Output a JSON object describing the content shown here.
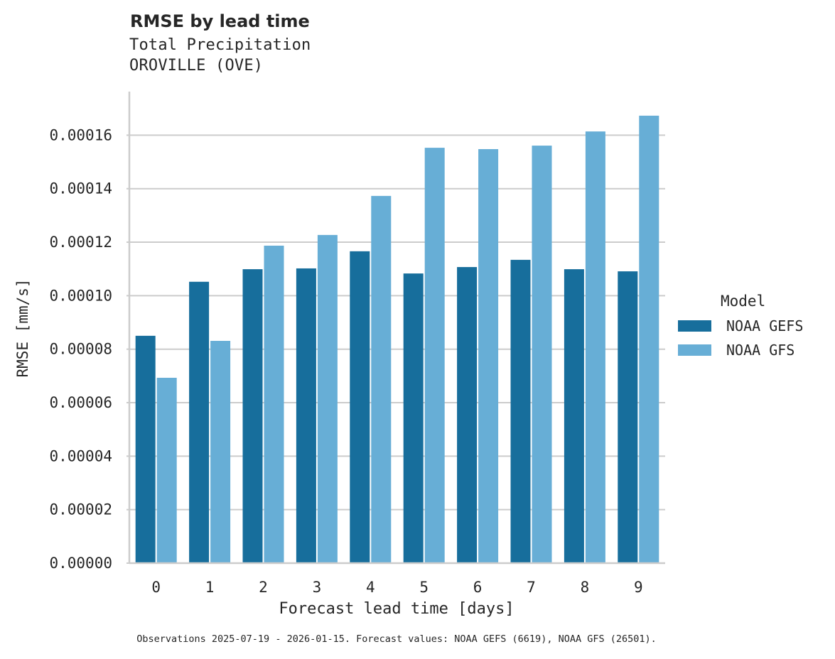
{
  "header": {
    "title": "RMSE by lead time",
    "subtitle_line1": "Total Precipitation",
    "subtitle_line2": "OROVILLE (OVE)"
  },
  "axes": {
    "xlabel": "Forecast lead time [days]",
    "ylabel": "RMSE [mm/s]",
    "yticks": [
      "0.00000",
      "0.00002",
      "0.00004",
      "0.00006",
      "0.00008",
      "0.00010",
      "0.00012",
      "0.00014",
      "0.00016"
    ],
    "xticks": [
      "0",
      "1",
      "2",
      "3",
      "4",
      "5",
      "6",
      "7",
      "8",
      "9"
    ]
  },
  "legend": {
    "title": "Model",
    "items": [
      {
        "label": "NOAA GEFS",
        "color": "#176e9c"
      },
      {
        "label": "NOAA GFS",
        "color": "#67aed6"
      }
    ]
  },
  "footnote": "Observations 2025-07-19 - 2026-01-15. Forecast values: NOAA GEFS (6619), NOAA GFS (26501).",
  "chart_data": {
    "type": "bar",
    "title": "RMSE by lead time",
    "subtitle": "Total Precipitation — OROVILLE (OVE)",
    "xlabel": "Forecast lead time [days]",
    "ylabel": "RMSE [mm/s]",
    "categories": [
      "0",
      "1",
      "2",
      "3",
      "4",
      "5",
      "6",
      "7",
      "8",
      "9"
    ],
    "series": [
      {
        "name": "NOAA GEFS",
        "color": "#176e9c",
        "values": [
          8.5e-05,
          0.0001052,
          0.0001099,
          0.0001102,
          0.0001166,
          0.0001083,
          0.0001107,
          0.0001134,
          0.0001099,
          0.0001091
        ]
      },
      {
        "name": "NOAA GFS",
        "color": "#67aed6",
        "values": [
          6.93e-05,
          8.31e-05,
          0.0001187,
          0.0001227,
          0.0001373,
          0.0001553,
          0.0001548,
          0.0001561,
          0.0001614,
          0.0001673
        ]
      }
    ],
    "ylim": [
      0,
      0.0001763
    ],
    "yticks": [
      0,
      2e-05,
      4e-05,
      6e-05,
      8e-05,
      0.0001,
      0.00012,
      0.00014,
      0.00016
    ],
    "grid": "horizontal",
    "legend_position": "right",
    "legend_title": "Model"
  }
}
